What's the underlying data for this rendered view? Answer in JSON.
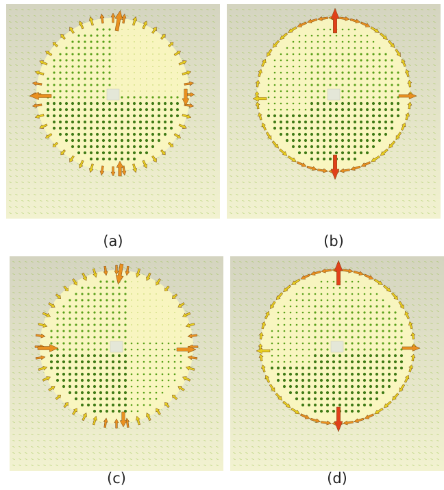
{
  "figure": {
    "panels": [
      {
        "label": "(a)",
        "mode": "a"
      },
      {
        "label": "(b)",
        "mode": "b"
      },
      {
        "label": "(c)",
        "mode": "c"
      },
      {
        "label": "(d)",
        "mode": "d"
      }
    ],
    "colors": {
      "background_top": "#d4d4c0",
      "background_bottom": "#f2f2d0",
      "disk": "#fbf7bf",
      "arrow_strong": "#e0401a",
      "arrow_medium": "#e99020",
      "arrow_weak": "#e8d020",
      "field_dot": "#5aa019",
      "field_dash": "#8fbf3a"
    }
  }
}
